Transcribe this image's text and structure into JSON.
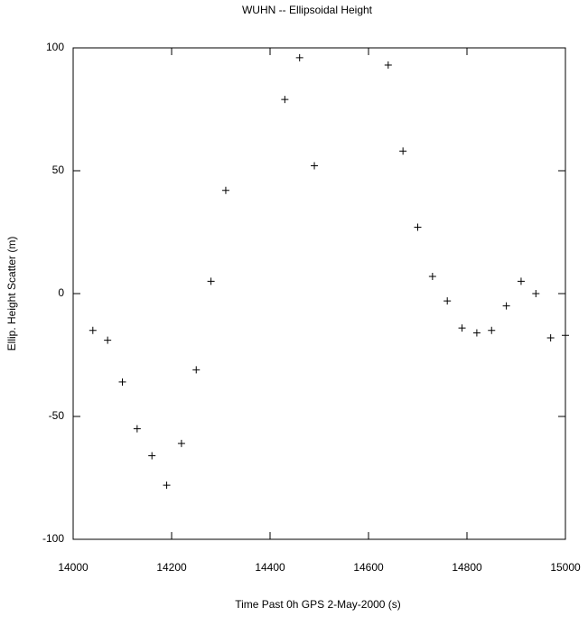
{
  "chart_data": {
    "type": "scatter",
    "title": "WUHN -- Ellipsoidal Height",
    "xlabel": "Time Past 0h GPS 2-May-2000  (s)",
    "ylabel": "Ellip. Height Scatter  (m)",
    "x": [
      14040,
      14070,
      14100,
      14130,
      14160,
      14190,
      14220,
      14250,
      14280,
      14310,
      14430,
      14460,
      14490,
      14640,
      14670,
      14700,
      14730,
      14760,
      14790,
      14820,
      14850,
      14880,
      14910,
      14940,
      14970,
      15000
    ],
    "values": [
      -15,
      -19,
      -36,
      -55,
      -66,
      -78,
      -61,
      -31,
      5,
      42,
      79,
      96,
      52,
      93,
      58,
      27,
      7,
      -3,
      -14,
      -16,
      -15,
      -5,
      5,
      0,
      -18,
      -17
    ],
    "color": "#000000",
    "xlim": [
      14000,
      15000
    ],
    "xticks": [
      14000,
      14200,
      14400,
      14600,
      14800,
      15000
    ],
    "ylim": [
      -100,
      100
    ],
    "yticks": [
      -100,
      -50,
      0,
      50,
      100
    ],
    "grid": false
  }
}
